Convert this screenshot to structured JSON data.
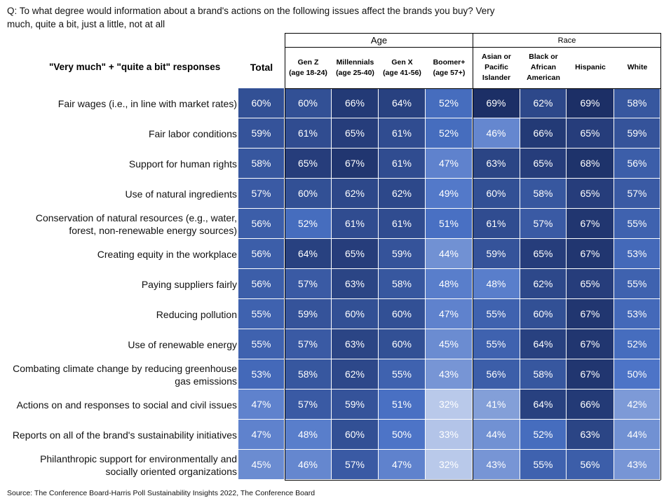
{
  "question": "Q: To what degree would information about a brand's actions on the following issues affect the brands you buy? Very much, quite a bit, just a little, not at all",
  "source": "Source: The Conference Board-Harris Poll Sustainability Insights 2022, The Conference Board",
  "chart_data": {
    "type": "table",
    "row_header": "\"Very much\" + \"quite a bit\" responses",
    "groups": [
      {
        "label": "Age",
        "columns": [
          1,
          2,
          3,
          4
        ]
      },
      {
        "label": "Race",
        "columns": [
          5,
          6,
          7,
          8
        ]
      }
    ],
    "columns": [
      "Total",
      "Gen Z\n(age 18-24)",
      "Millennials\n(age 25-40)",
      "Gen X\n(age 41-56)",
      "Boomer+\n(age 57+)",
      "Asian or\nPacific\nIslander",
      "Black or\nAfrican\nAmerican",
      "Hispanic",
      "White"
    ],
    "rows": [
      {
        "label": "Fair wages (i.e., in line with market rates)",
        "values": [
          60,
          60,
          66,
          64,
          52,
          69,
          62,
          69,
          58
        ]
      },
      {
        "label": "Fair labor conditions",
        "values": [
          59,
          61,
          65,
          61,
          52,
          46,
          66,
          65,
          59
        ]
      },
      {
        "label": "Support for human rights",
        "values": [
          58,
          65,
          67,
          61,
          47,
          63,
          65,
          68,
          56
        ]
      },
      {
        "label": "Use of natural ingredients",
        "values": [
          57,
          60,
          62,
          62,
          49,
          60,
          58,
          65,
          57
        ]
      },
      {
        "label": "Conservation of natural resources (e.g., water, forest, non-renewable energy sources)",
        "values": [
          56,
          52,
          61,
          61,
          51,
          61,
          57,
          67,
          55
        ]
      },
      {
        "label": "Creating equity in the workplace",
        "values": [
          56,
          64,
          65,
          59,
          44,
          59,
          65,
          67,
          53
        ]
      },
      {
        "label": "Paying suppliers fairly",
        "values": [
          56,
          57,
          63,
          58,
          48,
          48,
          62,
          65,
          55
        ]
      },
      {
        "label": "Reducing pollution",
        "values": [
          55,
          59,
          60,
          60,
          47,
          55,
          60,
          67,
          53
        ]
      },
      {
        "label": "Use of renewable energy",
        "values": [
          55,
          57,
          63,
          60,
          45,
          55,
          64,
          67,
          52
        ]
      },
      {
        "label": "Combating climate change by reducing greenhouse gas emissions",
        "values": [
          53,
          58,
          62,
          55,
          43,
          56,
          58,
          67,
          50
        ]
      },
      {
        "label": "Actions on and responses to social and civil issues",
        "values": [
          47,
          57,
          59,
          51,
          32,
          41,
          64,
          66,
          42
        ]
      },
      {
        "label": "Reports on all of the brand's sustainability initiatives",
        "values": [
          47,
          48,
          60,
          50,
          33,
          44,
          52,
          63,
          44
        ]
      },
      {
        "label": "Philanthropic support for environmentally and socially oriented organizations",
        "values": [
          45,
          46,
          57,
          47,
          32,
          43,
          55,
          56,
          43
        ]
      }
    ],
    "value_suffix": "%",
    "color_scale": {
      "low": "#b9c9ea",
      "mid": "#4a72c6",
      "high": "#1c2f66",
      "min_value": 32,
      "max_value": 69
    }
  }
}
